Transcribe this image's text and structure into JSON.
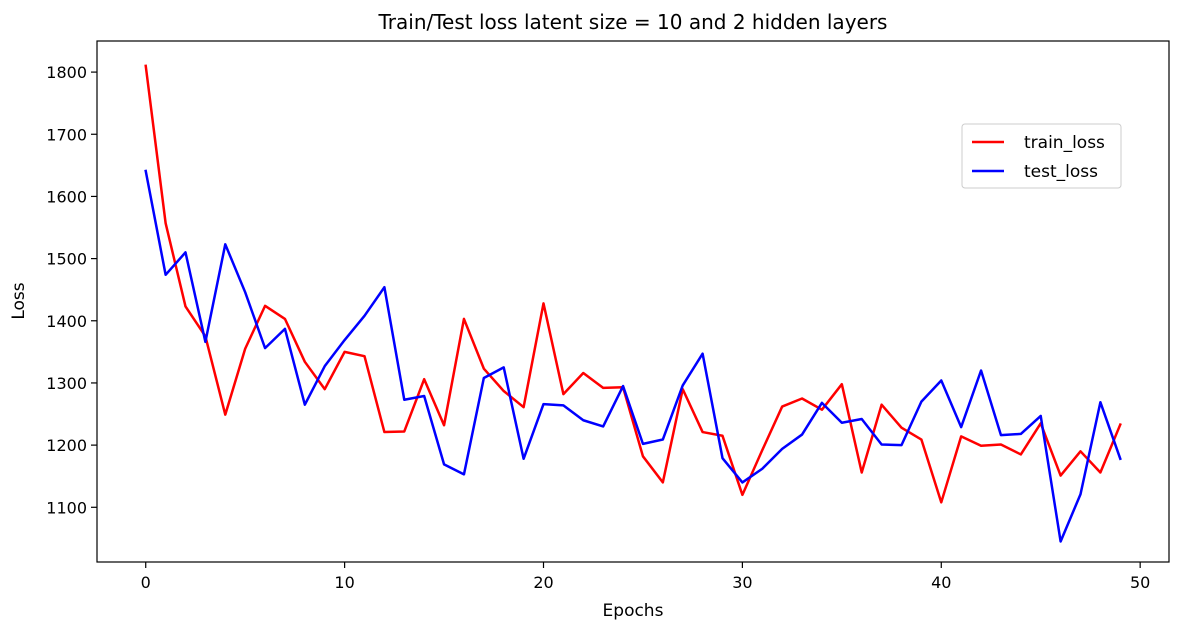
{
  "chart_data": {
    "type": "line",
    "title": "Train/Test loss latent size = 10 and 2 hidden layers",
    "xlabel": "Epochs",
    "ylabel": "Loss",
    "xlim": [
      -2.45,
      51.45
    ],
    "ylim": [
      1012,
      1850
    ],
    "xticks": [
      0,
      10,
      20,
      30,
      40,
      50
    ],
    "yticks": [
      1100,
      1200,
      1300,
      1400,
      1500,
      1600,
      1700,
      1800
    ],
    "grid": false,
    "legend_position": "upper-right",
    "x": [
      0,
      1,
      2,
      3,
      4,
      5,
      6,
      7,
      8,
      9,
      10,
      11,
      12,
      13,
      14,
      15,
      16,
      17,
      18,
      19,
      20,
      21,
      22,
      23,
      24,
      25,
      26,
      27,
      28,
      29,
      30,
      31,
      32,
      33,
      34,
      35,
      36,
      37,
      38,
      39,
      40,
      41,
      42,
      43,
      44,
      45,
      46,
      47,
      48,
      49
    ],
    "series": [
      {
        "name": "train_loss",
        "color": "#ff0000",
        "values": [
          1810,
          1557,
          1423,
          1375,
          1249,
          1355,
          1424,
          1403,
          1334,
          1290,
          1350,
          1343,
          1221,
          1222,
          1306,
          1232,
          1403,
          1323,
          1287,
          1261,
          1428,
          1282,
          1316,
          1292,
          1293,
          1182,
          1140,
          1290,
          1221,
          1215,
          1120,
          1192,
          1262,
          1275,
          1257,
          1298,
          1156,
          1265,
          1228,
          1209,
          1108,
          1214,
          1199,
          1201,
          1185,
          1235,
          1151,
          1190,
          1156,
          1233
        ]
      },
      {
        "name": "test_loss",
        "color": "#0000ff",
        "values": [
          1641,
          1474,
          1510,
          1366,
          1523,
          1446,
          1356,
          1387,
          1265,
          1327,
          1369,
          1408,
          1454,
          1273,
          1279,
          1169,
          1153,
          1308,
          1325,
          1178,
          1266,
          1264,
          1240,
          1230,
          1295,
          1202,
          1209,
          1296,
          1347,
          1179,
          1140,
          1162,
          1194,
          1217,
          1268,
          1236,
          1242,
          1201,
          1200,
          1270,
          1304,
          1229,
          1320,
          1216,
          1218,
          1247,
          1045,
          1121,
          1269,
          1178
        ]
      }
    ]
  }
}
